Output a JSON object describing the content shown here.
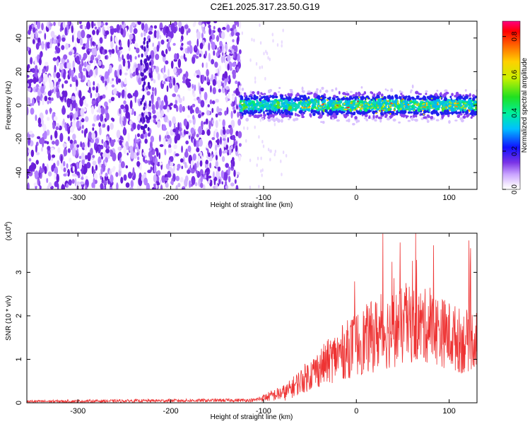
{
  "title": "C2E1.2025.317.23.50.G19",
  "colors": {
    "snr_line": "#ee3333",
    "scatter_background": "#7a33e6",
    "axis": "#000000"
  },
  "chart_data": [
    {
      "type": "heatmap",
      "xlabel": "Height of straight line (km)",
      "ylabel": "Frequency (Hz)",
      "xlim": [
        -355,
        130
      ],
      "ylim": [
        -50,
        50
      ],
      "xticks": [
        -300,
        -200,
        -100,
        0,
        100
      ],
      "xtick_labels": [
        "-300",
        "-200",
        "-100",
        "0",
        "100"
      ],
      "yticks": [
        -40,
        -20,
        0,
        20,
        40
      ],
      "ytick_labels": [
        "-40",
        "-20",
        "0",
        "20",
        "40"
      ],
      "noise_region_km": [
        -355,
        -125
      ],
      "signal_band_center_hz": 0,
      "signal_band_halfwidth_hz": 9,
      "colorbar": {
        "label": "Normalized spectral amplitude",
        "range": [
          0,
          0.88
        ],
        "ticks": [
          0.0,
          0.2,
          0.4,
          0.6,
          0.8
        ],
        "tick_labels": [
          "0.0",
          "0.2",
          "0.4",
          "0.6",
          "0.8"
        ]
      }
    },
    {
      "type": "line",
      "xlabel": "Height of straight line (km)",
      "ylabel": "SNR (10 * v/v)",
      "y_scale_label": "(x10",
      "y_scale_exponent": "4",
      "xlim": [
        -355,
        130
      ],
      "ylim": [
        0,
        3.9
      ],
      "xticks": [
        -300,
        -200,
        -100,
        0,
        100
      ],
      "xtick_labels": [
        "-300",
        "-200",
        "-100",
        "0",
        "100"
      ],
      "yticks": [
        0,
        1,
        2,
        3
      ],
      "ytick_labels": [
        "0",
        "1",
        "2",
        "3"
      ],
      "envelope": {
        "x": [
          -355,
          -200,
          -110,
          -75,
          -60,
          -40,
          -20,
          0,
          20,
          40,
          60,
          80,
          100,
          115,
          130
        ],
        "y": [
          0.03,
          0.05,
          0.06,
          0.25,
          0.5,
          0.8,
          1.1,
          1.35,
          1.55,
          1.7,
          1.8,
          1.75,
          1.55,
          1.4,
          1.5
        ]
      },
      "spread": {
        "x": [
          -355,
          -110,
          -75,
          -60,
          -40,
          -20,
          0,
          20,
          40,
          60,
          80,
          100,
          130
        ],
        "y": [
          0.03,
          0.04,
          0.2,
          0.3,
          0.45,
          0.6,
          0.75,
          0.85,
          0.9,
          0.9,
          0.85,
          0.8,
          0.7
        ]
      },
      "peak_max": 3.9
    }
  ]
}
